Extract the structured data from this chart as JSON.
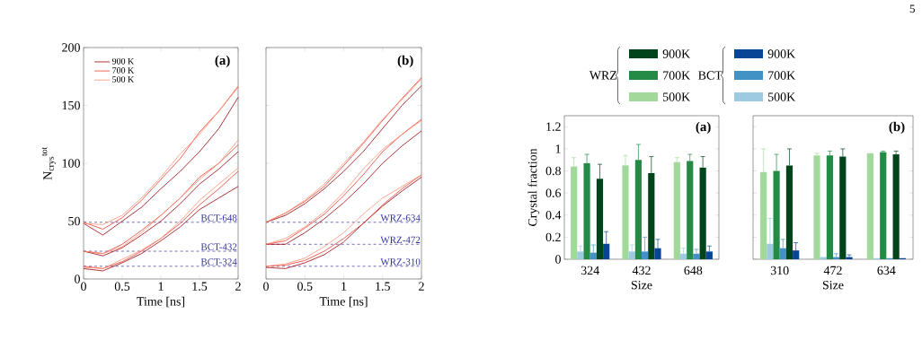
{
  "chart_data": [
    {
      "type": "line",
      "xlabel": "Time [ns]",
      "ylabel": "N$_{crys}$$^{tot}$",
      "xlim": [
        0,
        2
      ],
      "ylim": [
        0,
        200
      ],
      "xticks": [
        0,
        0.5,
        1,
        1.5,
        2
      ],
      "yticks": [
        0,
        50,
        100,
        150,
        200
      ],
      "legend": "top left",
      "line_style": "solid",
      "x": [
        0,
        0.25,
        0.5,
        0.75,
        1,
        1.25,
        1.5,
        1.75,
        2
      ],
      "series": [
        {
          "name": "900 K",
          "color": "#99000d",
          "values": [
            48,
            38,
            50,
            62,
            78,
            93,
            110,
            130,
            157
          ]
        },
        {
          "name": "700 K",
          "color": "#ef3b2c",
          "values": [
            49,
            43,
            53,
            68,
            86,
            104,
            127,
            145,
            166
          ]
        },
        {
          "name": "500 K",
          "color": "#fc9272",
          "values": [
            48,
            47,
            55,
            70,
            88,
            108,
            125,
            145,
            167
          ]
        },
        {
          "color": "#99000d",
          "values": [
            24,
            20,
            27,
            38,
            50,
            65,
            82,
            95,
            110
          ]
        },
        {
          "color": "#ef3b2c",
          "values": [
            24,
            22,
            30,
            42,
            55,
            70,
            88,
            100,
            116
          ]
        },
        {
          "color": "#fc9272",
          "values": [
            24,
            22,
            28,
            40,
            55,
            70,
            86,
            100,
            120
          ]
        },
        {
          "color": "#99000d",
          "values": [
            9,
            7,
            14,
            22,
            33,
            45,
            60,
            70,
            80
          ]
        },
        {
          "color": "#ef3b2c",
          "values": [
            11,
            9,
            15,
            24,
            35,
            48,
            64,
            78,
            93
          ]
        },
        {
          "color": "#fc9272",
          "values": [
            10,
            9,
            17,
            25,
            35,
            50,
            68,
            82,
            96
          ]
        }
      ],
      "ref_lines": [
        {
          "axis": "y",
          "value": 49,
          "label": "BCT-648",
          "color": "#3333a0",
          "line_style": "dashed"
        },
        {
          "axis": "y",
          "value": 24,
          "label": "BCT-432",
          "color": "#3333a0",
          "line_style": "dashed"
        },
        {
          "axis": "y",
          "value": 11,
          "label": "BCT-324",
          "color": "#3333a0",
          "line_style": "dashed"
        }
      ],
      "annotations": [
        "(a)"
      ]
    },
    {
      "type": "line",
      "xlabel": "Time [ns]",
      "xlim": [
        0,
        2
      ],
      "ylim": [
        0,
        200
      ],
      "xticks": [
        0,
        0.5,
        1,
        1.5,
        2
      ],
      "yticks": [
        0,
        50,
        100,
        150,
        200
      ],
      "tick_labels": "x",
      "line_style": "solid",
      "x": [
        0,
        0.25,
        0.5,
        0.75,
        1,
        1.25,
        1.5,
        1.75,
        2
      ],
      "series": [
        {
          "color": "#99000d",
          "values": [
            49,
            55,
            65,
            78,
            93,
            110,
            130,
            150,
            167
          ]
        },
        {
          "color": "#ef3b2c",
          "values": [
            49,
            57,
            67,
            80,
            98,
            117,
            137,
            156,
            174
          ]
        },
        {
          "color": "#fc9272",
          "values": [
            49,
            57,
            68,
            82,
            100,
            118,
            138,
            155,
            173
          ]
        },
        {
          "color": "#99000d",
          "values": [
            30,
            30,
            40,
            52,
            66,
            82,
            100,
            115,
            128
          ]
        },
        {
          "color": "#ef3b2c",
          "values": [
            30,
            33,
            44,
            56,
            72,
            90,
            110,
            125,
            138
          ]
        },
        {
          "color": "#fc9272",
          "values": [
            30,
            35,
            45,
            58,
            75,
            95,
            112,
            125,
            137
          ]
        },
        {
          "color": "#99000d",
          "values": [
            10,
            9,
            14,
            21,
            32,
            48,
            63,
            76,
            88
          ]
        },
        {
          "color": "#ef3b2c",
          "values": [
            11,
            12,
            16,
            24,
            35,
            48,
            64,
            78,
            90
          ]
        },
        {
          "color": "#fc9272",
          "values": [
            11,
            13,
            18,
            28,
            40,
            56,
            70,
            80,
            90
          ]
        }
      ],
      "ref_lines": [
        {
          "axis": "y",
          "value": 49,
          "label": "WRZ-634",
          "color": "#3333a0",
          "line_style": "dashed"
        },
        {
          "axis": "y",
          "value": 30,
          "label": "WRZ-472",
          "color": "#3333a0",
          "line_style": "dashed"
        },
        {
          "axis": "y",
          "value": 11,
          "label": "WRZ-310",
          "color": "#3333a0",
          "line_style": "dashed"
        }
      ],
      "annotations": [
        "(b)"
      ]
    },
    {
      "type": "bar",
      "xlabel": "Size",
      "ylabel": "Crystal fraction",
      "categories": [
        "324",
        "432",
        "648"
      ],
      "ylim": [
        0,
        1.3
      ],
      "yticks": [
        0,
        0.2,
        0.4,
        0.6,
        0.8,
        1,
        1.2
      ],
      "legend": "top",
      "series": [
        {
          "name": "500K",
          "color": "#a1d99b",
          "values": [
            0.84,
            0.85,
            0.88
          ],
          "errors": [
            [
              0.84,
              0.92
            ],
            [
              0.85,
              0.94
            ],
            [
              0.88,
              0.92
            ]
          ]
        },
        {
          "name": "500K",
          "color": "#9ecae1",
          "values": [
            0.07,
            0.07,
            0.05
          ],
          "errors": [
            [
              0.07,
              0.12
            ],
            [
              0.07,
              0.13
            ],
            [
              0.05,
              0.1
            ]
          ]
        },
        {
          "name": "700K",
          "color": "#238b45",
          "values": [
            0.87,
            0.9,
            0.89
          ],
          "errors": [
            [
              0.87,
              0.95
            ],
            [
              0.9,
              1.04
            ],
            [
              0.89,
              0.95
            ]
          ]
        },
        {
          "name": "700K",
          "color": "#4292c6",
          "values": [
            0.06,
            0.07,
            0.05
          ],
          "errors": [
            [
              0.06,
              0.13
            ],
            [
              0.07,
              0.2
            ],
            [
              0.05,
              0.09
            ]
          ]
        },
        {
          "name": "900K",
          "color": "#00441b",
          "values": [
            0.73,
            0.78,
            0.83
          ],
          "errors": [
            [
              0.73,
              0.86
            ],
            [
              0.78,
              0.93
            ],
            [
              0.83,
              0.93
            ]
          ]
        },
        {
          "name": "900K",
          "color": "#084594",
          "values": [
            0.14,
            0.1,
            0.07
          ],
          "errors": [
            [
              0.14,
              0.25
            ],
            [
              0.1,
              0.18
            ],
            [
              0.07,
              0.12
            ]
          ]
        }
      ],
      "annotations": [
        "(a)",
        "WRZ",
        "BCT"
      ]
    },
    {
      "type": "bar",
      "xlabel": "Size",
      "categories": [
        "310",
        "472",
        "634"
      ],
      "ylim": [
        0,
        1.3
      ],
      "yticks": [
        0,
        0.2,
        0.4,
        0.6,
        0.8,
        1,
        1.2
      ],
      "tick_labels": "x",
      "series": [
        {
          "color": "#a1d99b",
          "values": [
            0.79,
            0.94,
            0.96
          ],
          "errors": [
            [
              0.79,
              1.0
            ],
            [
              0.94,
              0.96
            ],
            null
          ]
        },
        {
          "color": "#9ecae1",
          "values": [
            0.14,
            0.02,
            0.01
          ],
          "errors": [
            [
              0.14,
              0.37
            ],
            null,
            null
          ]
        },
        {
          "color": "#238b45",
          "values": [
            0.8,
            0.94,
            0.97
          ],
          "errors": [
            [
              0.8,
              0.95
            ],
            [
              0.94,
              0.98
            ],
            [
              0.97,
              0.98
            ]
          ]
        },
        {
          "color": "#4292c6",
          "values": [
            0.1,
            0.02,
            0.01
          ],
          "errors": [
            [
              0.1,
              0.18
            ],
            [
              0.02,
              0.05
            ],
            null
          ]
        },
        {
          "color": "#00441b",
          "values": [
            0.85,
            0.93,
            0.95
          ],
          "errors": [
            [
              0.85,
              1.0
            ],
            [
              0.93,
              1.0
            ],
            [
              0.95,
              0.98
            ]
          ]
        },
        {
          "color": "#084594",
          "values": [
            0.08,
            0.02,
            0.01
          ],
          "errors": [
            [
              0.08,
              0.15
            ],
            [
              0.02,
              0.04
            ],
            null
          ]
        }
      ],
      "annotations": [
        "(b)",
        "5"
      ]
    }
  ]
}
